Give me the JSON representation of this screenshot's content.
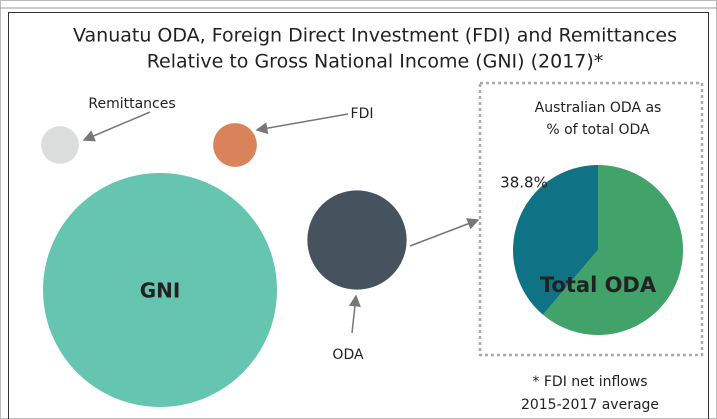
{
  "chart_data": [
    {
      "type": "bubble",
      "title_lines": [
        "Vanuatu ODA, Foreign Direct Investment (FDI) and Remittances",
        "Relative to Gross National Income (GNI) (2017)*"
      ],
      "categories": [
        "GNI",
        "ODA",
        "FDI",
        "Remittances"
      ],
      "values": [
        100,
        18,
        3.5,
        2.6
      ],
      "colors": [
        "#66c5b1",
        "#46535f",
        "#d9835a",
        "#dcdedd"
      ],
      "note_lines": [
        "* FDI net inflows",
        "2015-2017 average"
      ]
    },
    {
      "type": "pie",
      "title_lines": [
        "Australian ODA as",
        "% of total ODA"
      ],
      "center_label": "Total ODA",
      "values": [
        38.8,
        61.2
      ],
      "value_labels": [
        "38.8%",
        null
      ],
      "colors": [
        "#0f7285",
        "#41a26a"
      ]
    }
  ]
}
